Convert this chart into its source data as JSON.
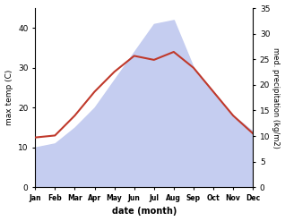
{
  "months": [
    "Jan",
    "Feb",
    "Mar",
    "Apr",
    "May",
    "Jun",
    "Jul",
    "Aug",
    "Sep",
    "Oct",
    "Nov",
    "Dec"
  ],
  "month_x": [
    1,
    2,
    3,
    4,
    5,
    6,
    7,
    8,
    9,
    10,
    11,
    12
  ],
  "temperature": [
    12.5,
    13.0,
    18.0,
    24.0,
    29.0,
    33.0,
    32.0,
    34.0,
    30.0,
    24.0,
    18.0,
    13.5
  ],
  "precipitation": [
    10,
    11,
    15,
    20,
    27,
    34,
    41,
    42,
    30,
    24,
    18,
    14
  ],
  "temp_color": "#c0392b",
  "precip_color": "#c5cdf0",
  "temp_ylim": [
    0,
    45
  ],
  "precip_ylim": [
    0,
    35
  ],
  "left_yticks": [
    0,
    10,
    20,
    30,
    40
  ],
  "right_yticks": [
    0,
    5,
    10,
    15,
    20,
    25,
    30,
    35
  ],
  "xlabel": "date (month)",
  "ylabel_left": "max temp (C)",
  "ylabel_right": "med. precipitation (kg/m2)",
  "background_color": "#ffffff"
}
